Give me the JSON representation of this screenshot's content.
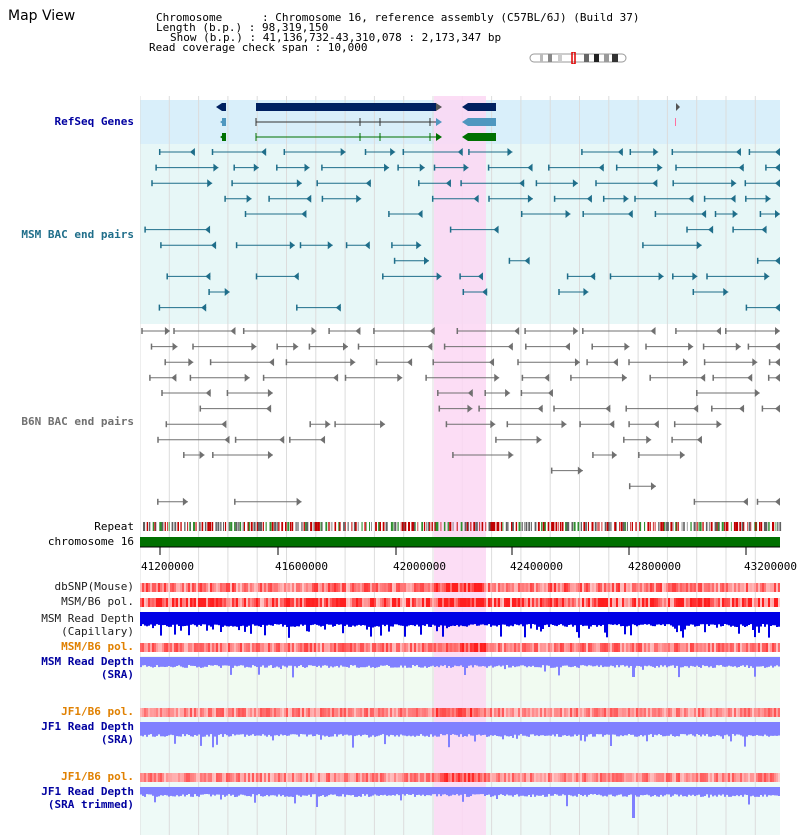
{
  "page": {
    "title": "Map View"
  },
  "header": {
    "chromosome_line": "Chromosome      : Chromosome 16, reference assembly (C57BL/6J) (Build 37)",
    "length_line": "Length (b.p.) : 98,319,150",
    "show_line": "Show (b.p.) : 41,136,732-43,310,078 : 2,173,347 bp",
    "coverage_line": "Read coverage check span : 10,000"
  },
  "tracks": {
    "refseq": "RefSeq Genes",
    "msm_bac": "MSM BAC end pairs",
    "b6n_bac": "B6N BAC end pairs",
    "repeat": "Repeat",
    "chromosome": "chromosome 16",
    "dbsnp": "dbSNP(Mouse)",
    "msm_b6_pol_1": "MSM/B6 pol.",
    "msm_depth_cap_1": "MSM Read Depth",
    "msm_depth_cap_2": "(Capillary)",
    "msm_b6_pol_2": "MSM/B6 pol.",
    "msm_depth_sra_1": "MSM Read Depth",
    "msm_depth_sra_2": "(SRA)",
    "jf1_b6_pol_1": "JF1/B6 pol.",
    "jf1_depth_sra_1": "JF1 Read Depth",
    "jf1_depth_sra_2": "(SRA)",
    "jf1_b6_pol_2": "JF1/B6 pol.",
    "jf1_depth_trim_1": "JF1 Read Depth",
    "jf1_depth_trim_2": "(SRA trimmed)"
  },
  "axis": {
    "ticks": [
      "41200000",
      "41600000",
      "42000000",
      "42400000",
      "42800000",
      "43200000"
    ]
  },
  "colors": {
    "refseq_bg": "#d9effa",
    "msm_bac_bg": "#e7f7f7",
    "b6n_bac_bg": "#ffffff",
    "highlight": "#fbd7f3",
    "gene_dark": "#002060",
    "gene_mid": "#4f97bf",
    "gene_green": "#007000",
    "msm_pair": "#1f6e8a",
    "b6n_pair": "#707070",
    "chromosome_bar": "#007000",
    "depth_blue": "#0000e6",
    "depth_light": "#8080ff",
    "pol_red": "#ff4040",
    "label_blue": "#0000a0",
    "label_teal": "#1f6e8a",
    "label_orange": "#e08000"
  }
}
